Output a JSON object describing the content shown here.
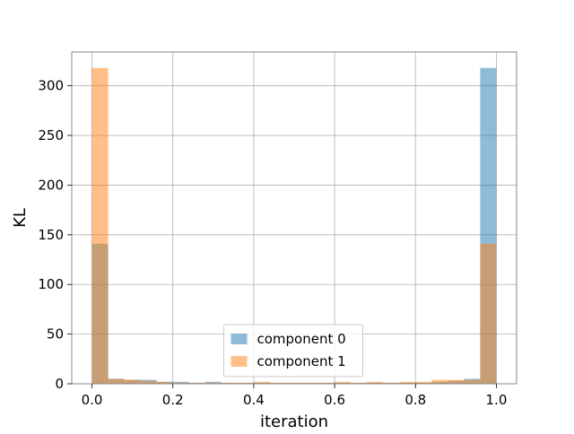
{
  "chart_data": {
    "type": "bar",
    "subtype": "overlaid-histogram",
    "title": "",
    "xlabel": "iteration",
    "ylabel": "KL",
    "xlim": [
      -0.05,
      1.05
    ],
    "ylim": [
      0,
      334
    ],
    "grid": true,
    "legend_position": "lower-center",
    "x_ticks": [
      0.0,
      0.2,
      0.4,
      0.6,
      0.8,
      1.0
    ],
    "x_tick_labels": [
      "0.0",
      "0.2",
      "0.4",
      "0.6",
      "0.8",
      "1.0"
    ],
    "y_ticks": [
      0,
      50,
      100,
      150,
      200,
      250,
      300
    ],
    "y_tick_labels": [
      "0",
      "50",
      "100",
      "150",
      "200",
      "250",
      "300"
    ],
    "bin_edges": [
      0.0,
      0.04,
      0.08,
      0.12,
      0.16,
      0.2,
      0.24,
      0.28,
      0.32,
      0.36,
      0.4,
      0.44,
      0.48,
      0.52,
      0.56,
      0.6,
      0.64,
      0.68,
      0.72,
      0.76,
      0.8,
      0.84,
      0.88,
      0.92,
      0.96,
      1.0
    ],
    "series": [
      {
        "name": "component 0",
        "color": "#1f77b4",
        "opacity": 0.5,
        "values": [
          141,
          5,
          4,
          4,
          2,
          2,
          1,
          2,
          1,
          1,
          1,
          1,
          1,
          1,
          1,
          1,
          1,
          1,
          1,
          1,
          1,
          2,
          3,
          5,
          318
        ]
      },
      {
        "name": "component 1",
        "color": "#ff7f0e",
        "opacity": 0.5,
        "values": [
          318,
          5,
          4,
          3,
          2,
          1,
          1,
          1,
          1,
          1,
          2,
          1,
          1,
          1,
          1,
          2,
          1,
          2,
          1,
          2,
          2,
          4,
          4,
          4,
          141
        ]
      }
    ]
  }
}
